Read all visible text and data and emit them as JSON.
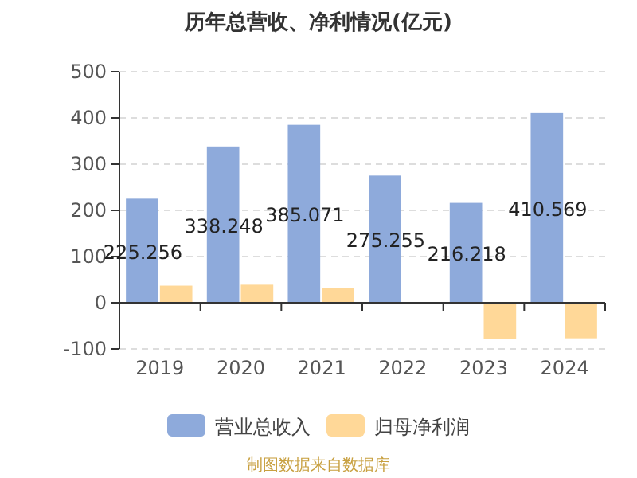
{
  "chart_data": {
    "type": "bar",
    "title": "历年总营收、净利情况(亿元)",
    "categories": [
      "2019",
      "2020",
      "2021",
      "2022",
      "2023",
      "2024"
    ],
    "series": [
      {
        "name": "营业总收入",
        "color": "#8eaadb",
        "values": [
          225.256,
          338.248,
          385.071,
          275.255,
          216.218,
          410.569
        ],
        "value_labels": [
          "225.256",
          "338.248",
          "385.071",
          "275.255",
          "216.218",
          "410.569"
        ]
      },
      {
        "name": "归母净利润",
        "color": "#ffd898",
        "values": [
          37,
          39,
          32,
          null,
          -78,
          -77
        ]
      }
    ],
    "ylim": [
      -100,
      500
    ],
    "yticks": [
      -100,
      0,
      100,
      200,
      300,
      400,
      500
    ],
    "grid": "y",
    "legend": "bottom",
    "annotations": [
      "制图数据来自数据库"
    ]
  }
}
